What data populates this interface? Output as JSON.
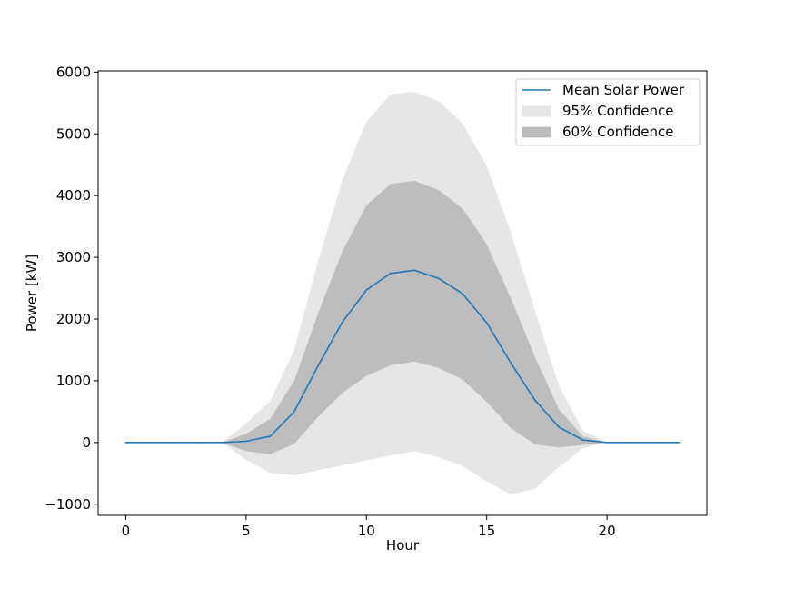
{
  "chart_data": {
    "type": "line",
    "title": "",
    "xlabel": "Hour",
    "ylabel": "Power [kW]",
    "xlim": [
      -1.15,
      24.15
    ],
    "ylim": [
      -1180,
      6020
    ],
    "x_ticks": [
      0,
      5,
      10,
      15,
      20
    ],
    "y_ticks": [
      -1000,
      0,
      1000,
      2000,
      3000,
      4000,
      5000,
      6000
    ],
    "x": [
      0,
      1,
      2,
      3,
      4,
      5,
      6,
      7,
      8,
      9,
      10,
      11,
      12,
      13,
      14,
      15,
      16,
      17,
      18,
      19,
      20,
      21,
      22,
      23
    ],
    "series": [
      {
        "name": "Mean Solar Power",
        "color": "#1f77b4",
        "values": [
          0,
          0,
          0,
          0,
          0,
          20,
          100,
          500,
          1250,
          1950,
          2470,
          2740,
          2790,
          2660,
          2410,
          1940,
          1290,
          690,
          250,
          40,
          0,
          0,
          0,
          0
        ]
      }
    ],
    "bands": [
      {
        "name": "95% Confidence",
        "color": "#e6e6e6",
        "lower": [
          0,
          0,
          0,
          0,
          0,
          -280,
          -490,
          -530,
          -450,
          -370,
          -290,
          -210,
          -140,
          -240,
          -380,
          -630,
          -840,
          -750,
          -400,
          -90,
          0,
          0,
          0,
          0
        ],
        "upper": [
          0,
          0,
          0,
          0,
          0,
          310,
          670,
          1500,
          2950,
          4250,
          5200,
          5640,
          5680,
          5530,
          5170,
          4480,
          3410,
          2140,
          920,
          190,
          0,
          0,
          0,
          0
        ]
      },
      {
        "name": "60% Confidence",
        "color": "#bdbdbd",
        "lower": [
          0,
          0,
          0,
          0,
          0,
          -140,
          -190,
          -20,
          420,
          800,
          1080,
          1250,
          1310,
          1210,
          1020,
          660,
          230,
          -30,
          -80,
          -40,
          0,
          0,
          0,
          0
        ],
        "upper": [
          0,
          0,
          0,
          0,
          0,
          140,
          380,
          1000,
          2100,
          3100,
          3840,
          4190,
          4240,
          4090,
          3790,
          3210,
          2340,
          1390,
          540,
          100,
          0,
          0,
          0,
          0
        ]
      }
    ],
    "legend": {
      "position": "top-right",
      "entries": [
        "Mean Solar Power",
        "95% Confidence",
        "60% Confidence"
      ]
    },
    "grid": false
  }
}
